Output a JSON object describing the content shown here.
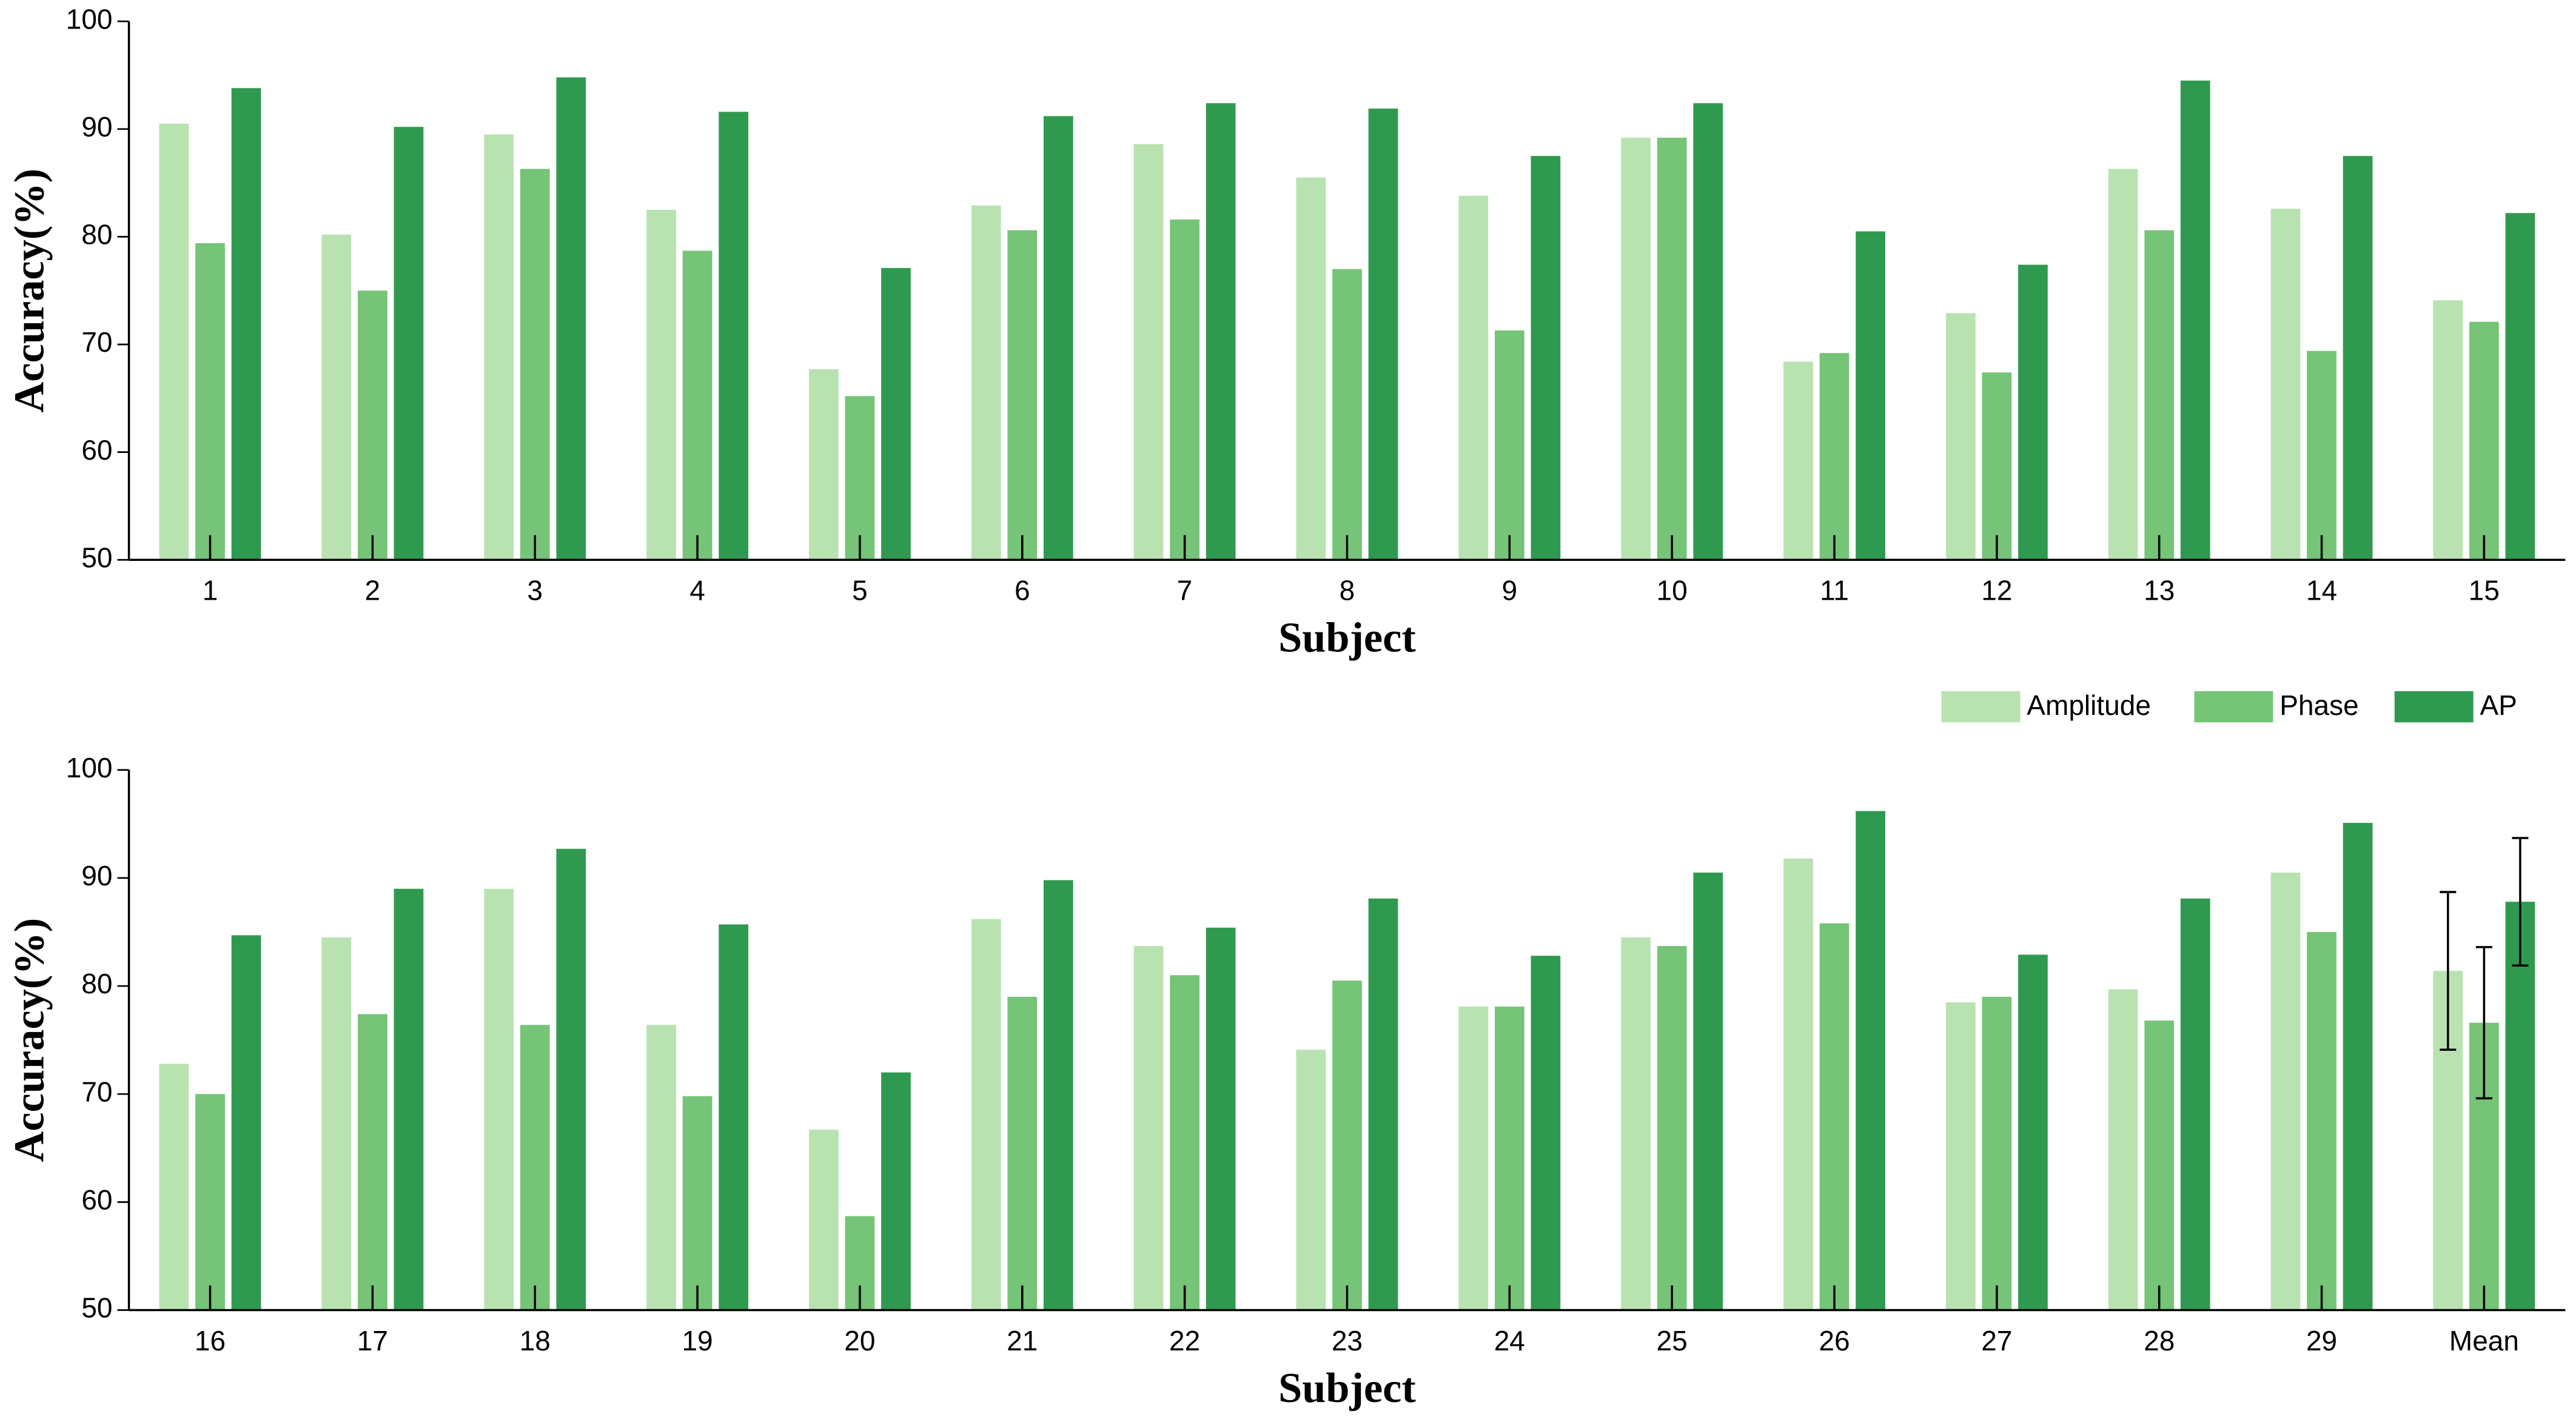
{
  "chart_data": [
    {
      "type": "bar",
      "xlabel": "Subject",
      "ylabel": "Accuracy(%)",
      "categories": [
        "1",
        "2",
        "3",
        "4",
        "5",
        "6",
        "7",
        "8",
        "9",
        "10",
        "11",
        "12",
        "13",
        "14",
        "15"
      ],
      "series": [
        {
          "name": "Amplitude",
          "color": "#b8e3b1",
          "values": [
            90.5,
            80.2,
            89.5,
            82.5,
            67.7,
            82.9,
            88.6,
            85.5,
            83.8,
            89.2,
            68.4,
            72.9,
            86.3,
            82.6,
            74.1
          ]
        },
        {
          "name": "Phase",
          "color": "#76c477",
          "values": [
            79.4,
            75,
            86.3,
            78.7,
            65.2,
            80.6,
            81.6,
            77,
            71.3,
            89.2,
            69.2,
            67.4,
            80.6,
            69.4,
            72.1
          ]
        },
        {
          "name": "AP",
          "color": "#2f9a4f",
          "values": [
            93.8,
            90.2,
            94.8,
            91.6,
            77.1,
            91.2,
            92.4,
            91.9,
            87.5,
            92.4,
            80.5,
            77.4,
            94.5,
            87.5,
            82.2
          ]
        }
      ],
      "ylim": [
        50,
        100
      ],
      "yticks": [
        50,
        60,
        70,
        80,
        90,
        100
      ]
    },
    {
      "type": "bar",
      "xlabel": "Subject",
      "ylabel": "Accuracy(%)",
      "legend": "top-right",
      "categories": [
        "16",
        "17",
        "18",
        "19",
        "20",
        "21",
        "22",
        "23",
        "24",
        "25",
        "26",
        "27",
        "28",
        "29",
        "Mean"
      ],
      "series": [
        {
          "name": "Amplitude",
          "color": "#b8e3b1",
          "values": [
            72.8,
            84.5,
            89,
            76.4,
            66.7,
            86.2,
            83.7,
            74.1,
            78.1,
            84.5,
            91.8,
            78.5,
            79.7,
            90.5,
            81.4
          ],
          "errors": [
            null,
            null,
            null,
            null,
            null,
            null,
            null,
            null,
            null,
            null,
            null,
            null,
            null,
            null,
            7.3
          ]
        },
        {
          "name": "Phase",
          "color": "#76c477",
          "values": [
            70,
            77.4,
            76.4,
            69.8,
            58.7,
            79,
            81,
            80.5,
            78.1,
            83.7,
            85.8,
            79,
            76.8,
            85,
            76.6
          ],
          "errors": [
            null,
            null,
            null,
            null,
            null,
            null,
            null,
            null,
            null,
            null,
            null,
            null,
            null,
            null,
            7
          ]
        },
        {
          "name": "AP",
          "color": "#2f9a4f",
          "values": [
            84.7,
            89,
            92.7,
            85.7,
            72,
            89.8,
            85.4,
            88.1,
            82.8,
            90.5,
            96.2,
            82.9,
            88.1,
            95.1,
            87.8
          ],
          "errors": [
            null,
            null,
            null,
            null,
            null,
            null,
            null,
            null,
            null,
            null,
            null,
            null,
            null,
            null,
            5.9
          ]
        }
      ],
      "ylim": [
        50,
        100
      ],
      "yticks": [
        50,
        60,
        70,
        80,
        90,
        100
      ]
    }
  ]
}
